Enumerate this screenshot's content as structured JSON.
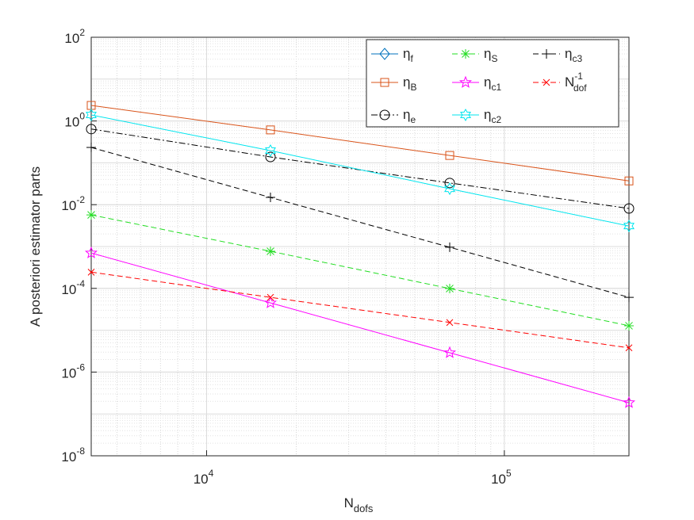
{
  "chart_data": {
    "type": "line",
    "ylabel": "A posteriori estimator parts",
    "xlabel": {
      "text": "N",
      "sub": "dofs"
    },
    "x": [
      4096,
      16384,
      65536,
      262144
    ],
    "xlim": [
      4096,
      262144
    ],
    "ylim": [
      1e-08,
      100
    ],
    "log_x": true,
    "log_y": true,
    "grid": true,
    "minor_grid": true,
    "legend": "northeast",
    "legend_columns": 3,
    "xticks": [
      {
        "value": 10000,
        "label": "10",
        "sup": "4"
      },
      {
        "value": 100000,
        "label": "10",
        "sup": "5"
      }
    ],
    "yticks": [
      {
        "value": 1e-08,
        "label": "10",
        "sup": "-8"
      },
      {
        "value": 1e-06,
        "label": "10",
        "sup": "-6"
      },
      {
        "value": 0.0001,
        "label": "10",
        "sup": "-4"
      },
      {
        "value": 0.01,
        "label": "10",
        "sup": "-2"
      },
      {
        "value": 1,
        "label": "10",
        "sup": "0"
      },
      {
        "value": 100,
        "label": "10",
        "sup": "2"
      }
    ],
    "series": [
      {
        "name": "η",
        "sub": "f",
        "color": "#0072bd",
        "dash": "solid",
        "marker": "diamond",
        "values": [
          null,
          null,
          null,
          null
        ]
      },
      {
        "name": "η",
        "sub": "B",
        "color": "#d95319",
        "dash": "solid",
        "marker": "square",
        "values": [
          2.35,
          0.61,
          0.15,
          0.037
        ]
      },
      {
        "name": "η",
        "sub": "e",
        "color": "#000000",
        "dash": "dashdot",
        "marker": "circle",
        "values": [
          0.64,
          0.138,
          0.033,
          0.0081
        ]
      },
      {
        "name": "η",
        "sub": "S",
        "color": "#22dd22",
        "dash": "dashed",
        "marker": "asterisk",
        "values": [
          0.0057,
          0.00077,
          9.9e-05,
          1.28e-05
        ]
      },
      {
        "name": "η",
        "sub": "c1",
        "color": "#ff00ff",
        "dash": "solid",
        "marker": "pentagram",
        "values": [
          0.0007,
          4.5e-05,
          2.9e-06,
          1.86e-07
        ]
      },
      {
        "name": "η",
        "sub": "c2",
        "color": "#00e5ee",
        "dash": "solid",
        "marker": "hexagram",
        "values": [
          1.39,
          0.196,
          0.024,
          0.0031
        ]
      },
      {
        "name": "η",
        "sub": "c3",
        "color": "#000000",
        "dash": "dashed",
        "marker": "plus",
        "values": [
          0.233,
          0.0149,
          0.00096,
          6.1e-05
        ]
      },
      {
        "name": "N",
        "sub": "dof",
        "sup": "-1",
        "color": "#ff0000",
        "dash": "dashed",
        "marker": "x",
        "values": [
          0.000244,
          6.1e-05,
          1.53e-05,
          3.8e-06
        ]
      }
    ]
  }
}
